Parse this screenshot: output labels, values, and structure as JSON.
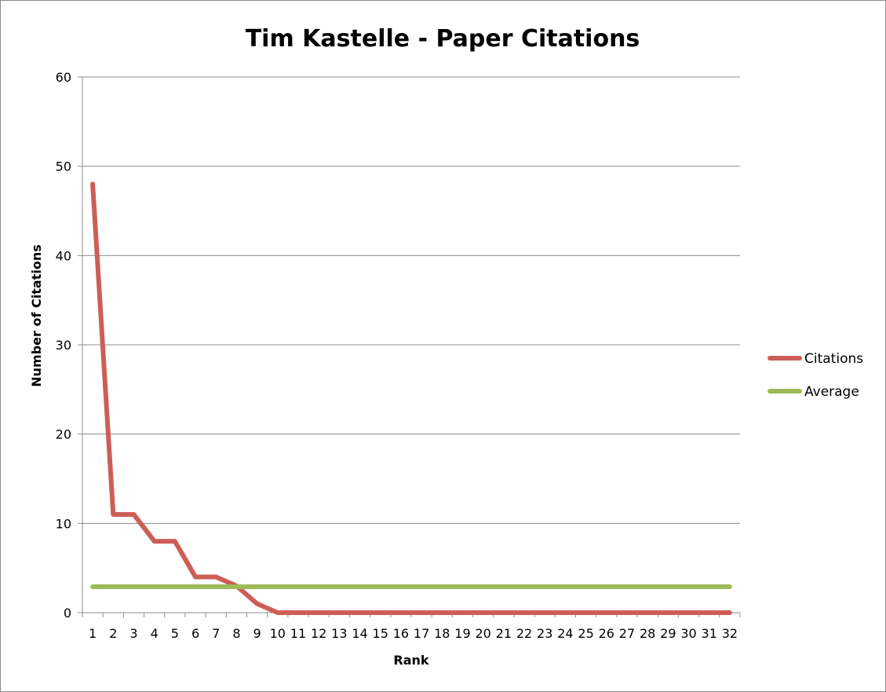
{
  "chart_data": {
    "type": "line",
    "title": "Tim Kastelle - Paper Citations",
    "xlabel": "Rank",
    "ylabel": "Number of Citations",
    "ylim": [
      0,
      60
    ],
    "yticks": [
      0,
      10,
      20,
      30,
      40,
      50,
      60
    ],
    "categories": [
      "1",
      "2",
      "3",
      "4",
      "5",
      "6",
      "7",
      "8",
      "9",
      "10",
      "11",
      "12",
      "13",
      "14",
      "15",
      "16",
      "17",
      "18",
      "19",
      "20",
      "21",
      "22",
      "23",
      "24",
      "25",
      "26",
      "27",
      "28",
      "29",
      "30",
      "31",
      "32"
    ],
    "grid": "horizontal",
    "legend_position": "right",
    "series": [
      {
        "name": "Citations",
        "color": "#cd5e56",
        "values": [
          48,
          11,
          11,
          8,
          8,
          4,
          4,
          3,
          1,
          0,
          0,
          0,
          0,
          0,
          0,
          0,
          0,
          0,
          0,
          0,
          0,
          0,
          0,
          0,
          0,
          0,
          0,
          0,
          0,
          0,
          0,
          0
        ]
      },
      {
        "name": "Average",
        "color": "#9bbb59",
        "values": [
          2.9,
          2.9,
          2.9,
          2.9,
          2.9,
          2.9,
          2.9,
          2.9,
          2.9,
          2.9,
          2.9,
          2.9,
          2.9,
          2.9,
          2.9,
          2.9,
          2.9,
          2.9,
          2.9,
          2.9,
          2.9,
          2.9,
          2.9,
          2.9,
          2.9,
          2.9,
          2.9,
          2.9,
          2.9,
          2.9,
          2.9,
          2.9
        ]
      }
    ]
  }
}
